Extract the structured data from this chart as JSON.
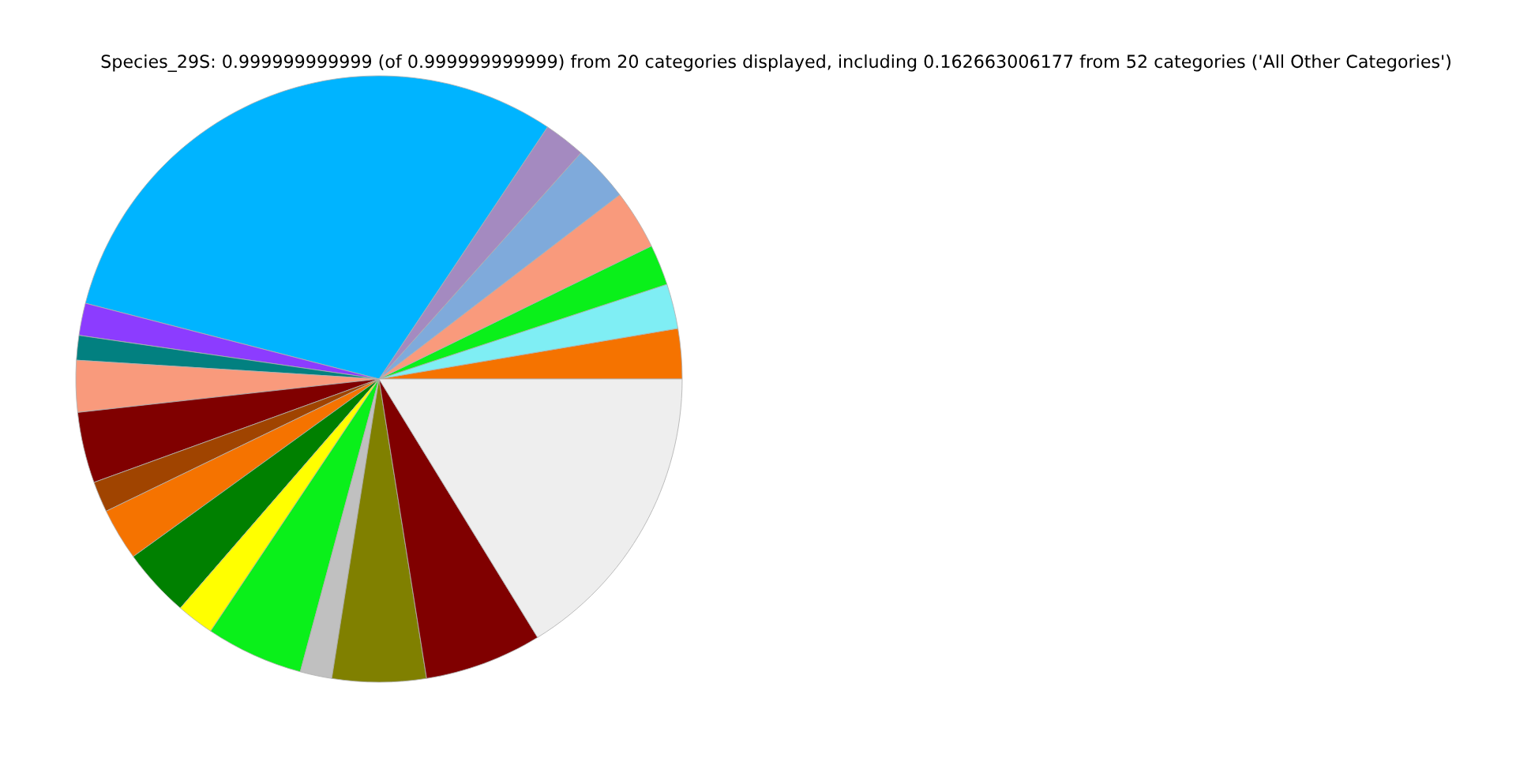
{
  "chart_data": {
    "type": "pie",
    "title": "Species_29S: 0.999999999999 (of 0.999999999999) from 20 categories displayed, including 0.162663006177 from 52 categories ('All Other Categories')",
    "categories": [
      null,
      null,
      null,
      null,
      null,
      null,
      null,
      null,
      null,
      null,
      null,
      null,
      null,
      null,
      null,
      null,
      null,
      null,
      null,
      null
    ],
    "values": [
      2.67,
      2.39,
      2.17,
      3.17,
      3.0,
      2.22,
      30.36,
      1.72,
      1.31,
      2.75,
      3.78,
      1.64,
      2.78,
      3.67,
      2.0,
      5.19,
      1.69,
      5.0,
      6.25,
      16.24
    ],
    "colors": [
      "#f57300",
      "#7feef4",
      "#0af01a",
      "#f99a7c",
      "#7faadb",
      "#a48ac0",
      "#00b4ff",
      "#8c3cff",
      "#028080",
      "#f99a7c",
      "#800000",
      "#a04400",
      "#f57300",
      "#008000",
      "#ffff00",
      "#0af01a",
      "#c0c0c0",
      "#808000",
      "#800000",
      "#eeeeee"
    ]
  }
}
